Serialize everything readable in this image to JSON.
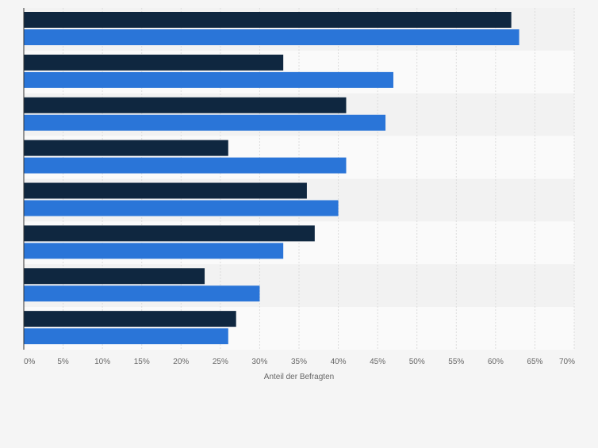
{
  "chart_data": {
    "type": "bar",
    "orientation": "horizontal",
    "categories": [
      "",
      "",
      "",
      "",
      "",
      "",
      "",
      ""
    ],
    "series": [
      {
        "color": "#0f2740",
        "values": [
          62,
          33,
          41,
          26,
          36,
          37,
          23,
          27
        ]
      },
      {
        "color": "#2a75d8",
        "values": [
          63,
          47,
          46,
          41,
          40,
          33,
          30,
          26
        ]
      }
    ],
    "xlim": [
      0,
      70
    ],
    "xticks": [
      0,
      5,
      10,
      15,
      20,
      25,
      30,
      35,
      40,
      45,
      50,
      55,
      60,
      65,
      70
    ],
    "tick_suffix": "%",
    "xlabel": "Anteil der Befragten",
    "ylabel": "",
    "title": "",
    "grid": true,
    "legend": "none"
  }
}
